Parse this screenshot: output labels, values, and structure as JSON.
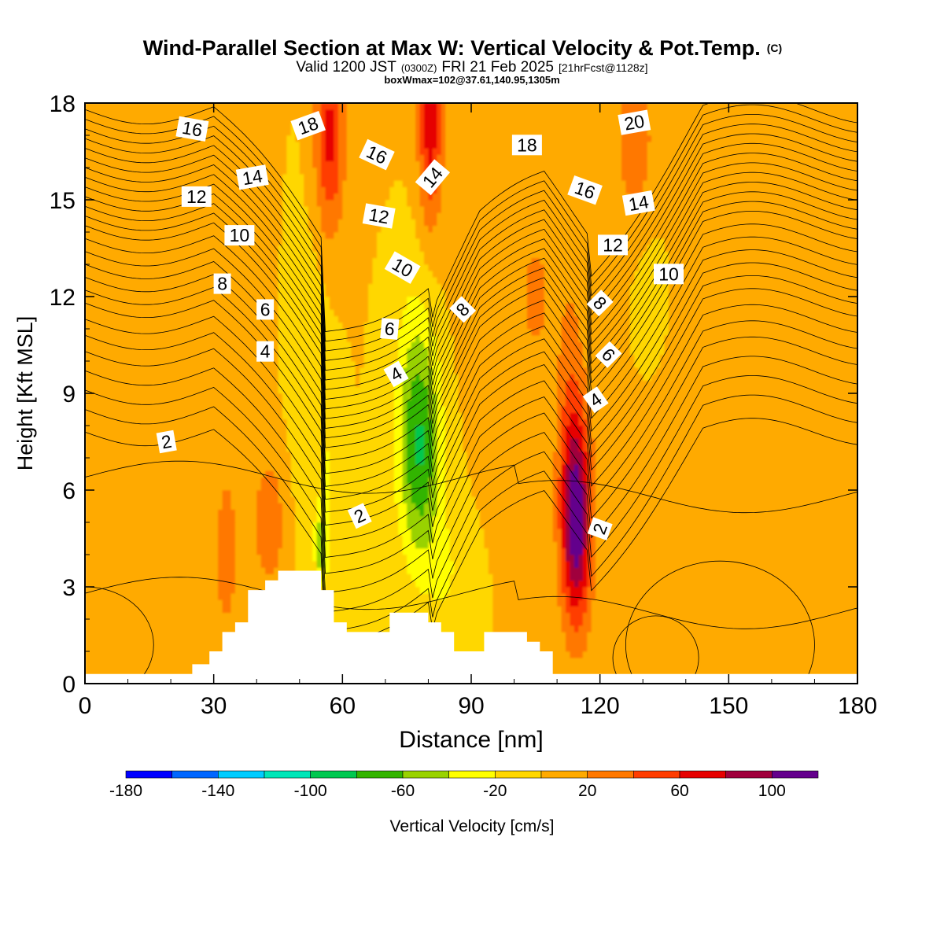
{
  "header": {
    "title_main": "Wind-Parallel Section at Max W: Vertical Velocity & Pot.Temp.",
    "title_unit": "(C)",
    "valid_prefix": "Valid 1200 JST",
    "valid_utc": "(0300Z)",
    "valid_date": "FRI 21 Feb 2025",
    "forecast_info": "[21hrFcst@1128z]",
    "box_info": "boxWmax=102@37.61,140.95,1305m"
  },
  "chart_data": {
    "type": "heatmap",
    "xlabel": "Distance [nm]",
    "ylabel": "Height [Kft MSL]",
    "xlim": [
      0,
      180
    ],
    "ylim": [
      0,
      18
    ],
    "x_ticks": [
      0,
      30,
      60,
      90,
      120,
      150,
      180
    ],
    "x_tick_labels": [
      "0",
      "30",
      "60",
      "90",
      "120",
      "150",
      "180"
    ],
    "y_ticks": [
      0,
      3,
      6,
      9,
      12,
      15,
      18
    ],
    "y_tick_labels": [
      "0",
      "3",
      "6",
      "9",
      "12",
      "15",
      "18"
    ],
    "background_value": 0,
    "colorbar": {
      "label": "Vertical Velocity [cm/s]",
      "bounds": [
        -180,
        -160,
        -140,
        -120,
        -100,
        -80,
        -60,
        -40,
        -20,
        0,
        20,
        40,
        60,
        80,
        100,
        120
      ],
      "tick_values": [
        -180,
        -140,
        -100,
        -60,
        -20,
        20,
        60,
        100
      ],
      "tick_labels": [
        "-180",
        "-140",
        "-100",
        "-60",
        "-20",
        "20",
        "60",
        "100"
      ],
      "colors": [
        "#0000ff",
        "#0066ff",
        "#00ccff",
        "#00e6b8",
        "#00c850",
        "#33b400",
        "#99d200",
        "#ffff00",
        "#ffd700",
        "#ffaa00",
        "#ff7800",
        "#ff3c00",
        "#e60000",
        "#a0003c",
        "#64008c"
      ]
    },
    "velocity_features": [
      {
        "x": 12,
        "y": 11.5,
        "sx": 14,
        "sy": 6,
        "w": 12
      },
      {
        "x": 160,
        "y": 11,
        "sx": 16,
        "sy": 4,
        "w": 12
      },
      {
        "x": 95,
        "y": 13,
        "sx": 12,
        "sy": 3,
        "w": 8
      },
      {
        "x": 33,
        "y": 4,
        "sx": 2,
        "sy": 1.8,
        "w": 32
      },
      {
        "x": 43,
        "y": 5,
        "sx": 3,
        "sy": 1.6,
        "w": 32
      },
      {
        "x": 57,
        "y": 17,
        "sx": 2.5,
        "sy": 2.2,
        "w": 65
      },
      {
        "x": 80.5,
        "y": 17.5,
        "sx": 2,
        "sy": 2.2,
        "w": 72
      },
      {
        "x": 128,
        "y": 17,
        "sx": 3,
        "sy": 1.8,
        "w": 38
      },
      {
        "x": 105,
        "y": 12,
        "sx": 2,
        "sy": 1,
        "w": 30
      },
      {
        "x": 113,
        "y": 9,
        "sx": 2.5,
        "sy": 3,
        "w": 26
      },
      {
        "x": 114.5,
        "y": 5,
        "sx": 2.6,
        "sy": 2.3,
        "w": 112
      },
      {
        "x": 52,
        "y": 9,
        "sx": 3,
        "sy": 3.5,
        "w": -16
      },
      {
        "x": 57,
        "y": 6,
        "sx": 2,
        "sy": 2.5,
        "w": -18
      },
      {
        "x": 78,
        "y": 7,
        "sx": 3.5,
        "sy": 2.4,
        "w": -72
      },
      {
        "x": 77,
        "y": 10,
        "sx": 4,
        "sy": 2.5,
        "w": -22
      },
      {
        "x": 55,
        "y": 4.2,
        "sx": 1,
        "sy": 0.8,
        "w": -45
      },
      {
        "x": 84,
        "y": 3.5,
        "sx": 3,
        "sy": 1.2,
        "w": -20
      },
      {
        "x": 132,
        "y": 12,
        "sx": 3,
        "sy": 1.5,
        "w": -10
      }
    ],
    "terrain": [
      [
        0,
        0.3
      ],
      [
        25,
        0.3
      ],
      [
        25,
        0.6
      ],
      [
        29,
        0.6
      ],
      [
        29,
        1.0
      ],
      [
        32,
        1.0
      ],
      [
        32,
        1.6
      ],
      [
        35,
        1.6
      ],
      [
        35,
        1.9
      ],
      [
        38,
        1.9
      ],
      [
        38,
        2.9
      ],
      [
        42,
        2.9
      ],
      [
        42,
        3.2
      ],
      [
        45,
        3.2
      ],
      [
        45,
        3.5
      ],
      [
        55,
        3.5
      ],
      [
        55,
        2.9
      ],
      [
        58,
        2.9
      ],
      [
        58,
        1.9
      ],
      [
        61,
        1.9
      ],
      [
        61,
        1.6
      ],
      [
        71,
        1.6
      ],
      [
        71,
        2.2
      ],
      [
        80,
        2.2
      ],
      [
        80,
        1.9
      ],
      [
        83,
        1.9
      ],
      [
        83,
        1.6
      ],
      [
        86,
        1.6
      ],
      [
        86,
        1.0
      ],
      [
        93,
        1.0
      ],
      [
        93,
        1.6
      ],
      [
        103,
        1.6
      ],
      [
        103,
        1.3
      ],
      [
        106,
        1.3
      ],
      [
        106,
        1.0
      ],
      [
        109,
        1.0
      ],
      [
        109,
        0.3
      ],
      [
        180,
        0.3
      ]
    ],
    "theta_contours": {
      "label_values": [
        2,
        4,
        6,
        8,
        10,
        12,
        14,
        16,
        18,
        20
      ],
      "levels": [
        {
          "value": 1,
          "y": 2.8
        },
        {
          "value": 2,
          "y": 6.4
        },
        {
          "value": 2.5,
          "y": 7.8
        },
        {
          "value": 3,
          "y": 8.5
        },
        {
          "value": 3.5,
          "y": 9.1
        },
        {
          "value": 4,
          "y": 9.7
        },
        {
          "value": 4.5,
          "y": 10.3
        },
        {
          "value": 5,
          "y": 10.8
        },
        {
          "value": 5.5,
          "y": 11.3
        },
        {
          "value": 6,
          "y": 11.8
        },
        {
          "value": 6.5,
          "y": 12.2
        },
        {
          "value": 7,
          "y": 12.6
        },
        {
          "value": 7.5,
          "y": 13.0
        },
        {
          "value": 8,
          "y": 13.4
        },
        {
          "value": 8.5,
          "y": 13.8
        },
        {
          "value": 9,
          "y": 14.2
        },
        {
          "value": 9.5,
          "y": 14.5
        },
        {
          "value": 10,
          "y": 14.8
        },
        {
          "value": 10.5,
          "y": 15.1
        },
        {
          "value": 11,
          "y": 15.4
        },
        {
          "value": 11.5,
          "y": 15.7
        },
        {
          "value": 12,
          "y": 16.0
        },
        {
          "value": 12.5,
          "y": 16.3
        },
        {
          "value": 13,
          "y": 16.6
        },
        {
          "value": 13.5,
          "y": 16.9
        },
        {
          "value": 14,
          "y": 17.2
        },
        {
          "value": 14.5,
          "y": 17.5
        },
        {
          "value": 15,
          "y": 17.8
        }
      ],
      "labels": [
        {
          "text": "2",
          "x": 19,
          "y": 7.5,
          "angle": -10
        },
        {
          "text": "2",
          "x": 64,
          "y": 5.2,
          "angle": -25
        },
        {
          "text": "2",
          "x": 120,
          "y": 4.8,
          "angle": -70
        },
        {
          "text": "4",
          "x": 42,
          "y": 10.3,
          "angle": 0
        },
        {
          "text": "4",
          "x": 72.5,
          "y": 9.6,
          "angle": -30
        },
        {
          "text": "4",
          "x": 119,
          "y": 8.8,
          "angle": -35
        },
        {
          "text": "6",
          "x": 42,
          "y": 11.6,
          "angle": 0
        },
        {
          "text": "6",
          "x": 71,
          "y": 11.0,
          "angle": 5
        },
        {
          "text": "6",
          "x": 122,
          "y": 10.2,
          "angle": 45
        },
        {
          "text": "8",
          "x": 32,
          "y": 12.4,
          "angle": 0
        },
        {
          "text": "8",
          "x": 88,
          "y": 11.6,
          "angle": -45
        },
        {
          "text": "8",
          "x": 120,
          "y": 11.8,
          "angle": 45
        },
        {
          "text": "10",
          "x": 36,
          "y": 13.9,
          "angle": 0
        },
        {
          "text": "10",
          "x": 74,
          "y": 12.9,
          "angle": 30
        },
        {
          "text": "10",
          "x": 136,
          "y": 12.7,
          "angle": 0
        },
        {
          "text": "12",
          "x": 26,
          "y": 15.1,
          "angle": 0
        },
        {
          "text": "12",
          "x": 68.5,
          "y": 14.5,
          "angle": 10
        },
        {
          "text": "12",
          "x": 123,
          "y": 13.6,
          "angle": 0
        },
        {
          "text": "14",
          "x": 39,
          "y": 15.7,
          "angle": -10
        },
        {
          "text": "14",
          "x": 81,
          "y": 15.7,
          "angle": -50
        },
        {
          "text": "14",
          "x": 129,
          "y": 14.9,
          "angle": -10
        },
        {
          "text": "16",
          "x": 25,
          "y": 17.2,
          "angle": 10
        },
        {
          "text": "16",
          "x": 68,
          "y": 16.4,
          "angle": 25
        },
        {
          "text": "16",
          "x": 116.5,
          "y": 15.3,
          "angle": 20
        },
        {
          "text": "18",
          "x": 52,
          "y": 17.3,
          "angle": -20
        },
        {
          "text": "18",
          "x": 103,
          "y": 16.7,
          "angle": 0
        },
        {
          "text": "20",
          "x": 128,
          "y": 17.4,
          "angle": -10
        }
      ]
    }
  }
}
